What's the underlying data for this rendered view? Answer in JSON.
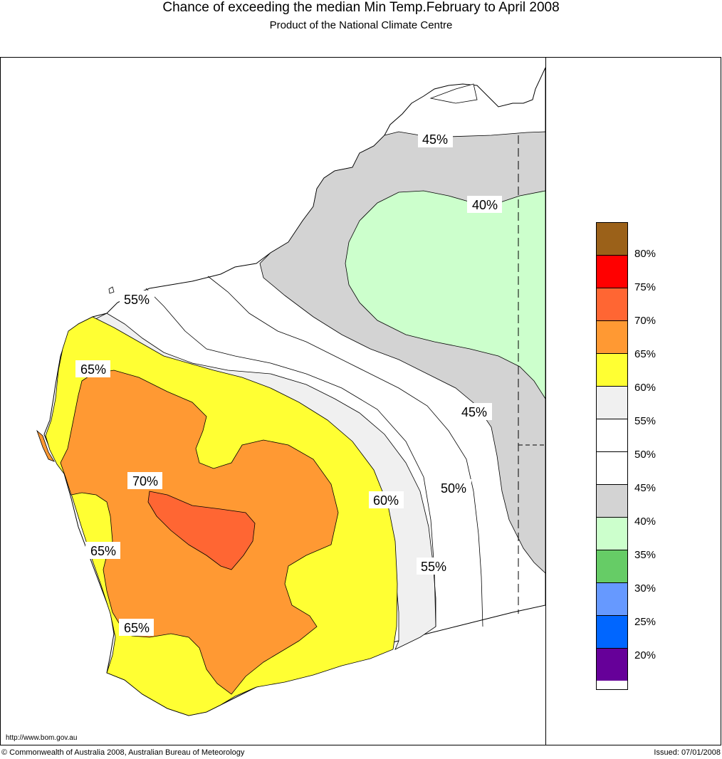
{
  "header": {
    "title": "Chance of exceeding the median Min Temp.February to April 2008",
    "subtitle": "Product of the National Climate Centre"
  },
  "footer": {
    "url": "http://www.bom.gov.au",
    "copyright": "© Commonwealth of Australia 2008, Australian Bureau of Meteorology",
    "issued": "Issued: 07/01/2008"
  },
  "map_labels": {
    "n45": "45%",
    "n40": "40%",
    "nw55": "55%",
    "w65": "65%",
    "e45": "45%",
    "c70": "70%",
    "e60": "60%",
    "e50": "50%",
    "sw65a": "65%",
    "e55": "55%",
    "sw65b": "65%"
  },
  "legend": {
    "items": [
      {
        "color": "#9b6119",
        "label": ""
      },
      {
        "color": "#ff0000",
        "label": "80%"
      },
      {
        "color": "#ff6633",
        "label": "75%"
      },
      {
        "color": "#ff9933",
        "label": "70%"
      },
      {
        "color": "#ffff33",
        "label": "65%"
      },
      {
        "color": "#f0f0f0",
        "label": "60%"
      },
      {
        "color": "#ffffff",
        "label": "55%"
      },
      {
        "color": "#ffffff",
        "label": "50%"
      },
      {
        "color": "#d3d3d3",
        "label": "45%"
      },
      {
        "color": "#ccffcc",
        "label": "40%"
      },
      {
        "color": "#66cc66",
        "label": "35%"
      },
      {
        "color": "#6699ff",
        "label": "30%"
      },
      {
        "color": "#0066ff",
        "label": "25%"
      },
      {
        "color": "#660099",
        "label": "20%"
      }
    ]
  }
}
